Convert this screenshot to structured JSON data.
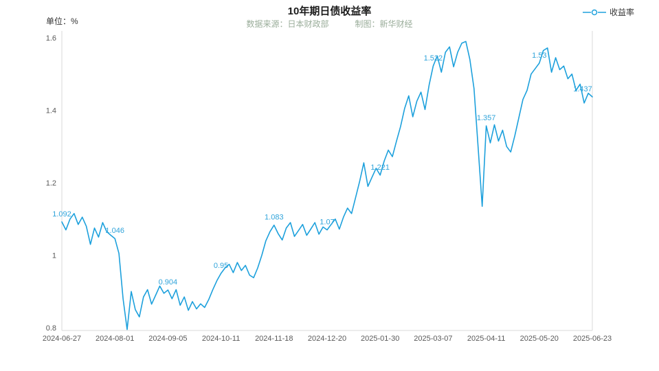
{
  "chart_data": {
    "type": "line",
    "title": "10年期日债收益率",
    "unit_label": "单位：%",
    "source_label": "数据来源：日本财政部",
    "credit_label": "制图：新华财经",
    "legend": {
      "label": "收益率",
      "position": "top-right"
    },
    "line_color": "#1ca0dc",
    "label_color": "#2fa3da",
    "axis_color": "#d9d9d9",
    "tick_text_color": "#595959",
    "grid": false,
    "xlabel": "",
    "ylabel": "",
    "ylim": [
      0.8,
      1.6
    ],
    "y_ticks": [
      "1.6",
      "1.4",
      "1.2",
      "1",
      "0.8"
    ],
    "x_tick_labels": [
      "2024-06-27",
      "2024-08-01",
      "2024-09-05",
      "2024-10-11",
      "2024-11-18",
      "2024-12-20",
      "2025-01-30",
      "2025-03-07",
      "2025-04-11",
      "2025-05-20",
      "2025-06-23"
    ],
    "tick_step": 13,
    "tick_point_labels": [
      {
        "text": "1.092"
      },
      {
        "text": "1.046"
      },
      {
        "text": "0.904"
      },
      {
        "text": "0.95"
      },
      {
        "text": "1.083"
      },
      {
        "text": "1.07"
      },
      {
        "text": "1.221"
      },
      {
        "text": "1.522"
      },
      {
        "text": "1.357"
      },
      {
        "text": "1.53"
      },
      {
        "text": "1.437",
        "dx": -14
      }
    ],
    "values": [
      1.092,
      1.07,
      1.1,
      1.115,
      1.085,
      1.105,
      1.08,
      1.03,
      1.075,
      1.05,
      1.09,
      1.065,
      1.055,
      1.046,
      1.005,
      0.88,
      0.795,
      0.9,
      0.85,
      0.83,
      0.885,
      0.905,
      0.865,
      0.89,
      0.915,
      0.895,
      0.904,
      0.88,
      0.905,
      0.862,
      0.885,
      0.848,
      0.872,
      0.852,
      0.866,
      0.856,
      0.878,
      0.905,
      0.93,
      0.95,
      0.965,
      0.975,
      0.952,
      0.98,
      0.958,
      0.972,
      0.945,
      0.938,
      0.965,
      1.0,
      1.04,
      1.065,
      1.083,
      1.06,
      1.042,
      1.075,
      1.09,
      1.052,
      1.068,
      1.085,
      1.055,
      1.072,
      1.09,
      1.058,
      1.078,
      1.07,
      1.085,
      1.1,
      1.072,
      1.105,
      1.13,
      1.115,
      1.16,
      1.205,
      1.255,
      1.19,
      1.215,
      1.24,
      1.221,
      1.26,
      1.29,
      1.272,
      1.315,
      1.355,
      1.405,
      1.44,
      1.382,
      1.425,
      1.45,
      1.402,
      1.47,
      1.522,
      1.55,
      1.505,
      1.56,
      1.575,
      1.52,
      1.56,
      1.585,
      1.59,
      1.54,
      1.46,
      1.3,
      1.135,
      1.357,
      1.31,
      1.36,
      1.315,
      1.345,
      1.3,
      1.285,
      1.33,
      1.38,
      1.43,
      1.455,
      1.5,
      1.515,
      1.53,
      1.565,
      1.572,
      1.505,
      1.545,
      1.512,
      1.522,
      1.487,
      1.5,
      1.455,
      1.472,
      1.42,
      1.447,
      1.437
    ]
  }
}
